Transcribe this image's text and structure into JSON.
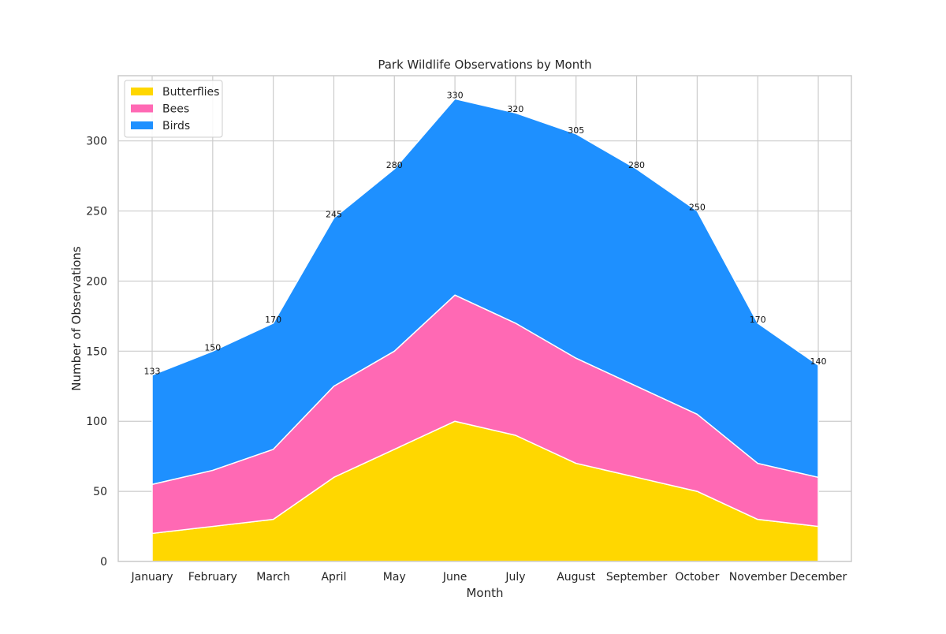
{
  "chart_data": {
    "type": "area",
    "stacked": true,
    "title": "Park Wildlife Observations by Month",
    "xlabel": "Month",
    "ylabel": "Number of Observations",
    "categories": [
      "January",
      "February",
      "March",
      "April",
      "May",
      "June",
      "July",
      "August",
      "September",
      "October",
      "November",
      "December"
    ],
    "series": [
      {
        "name": "Butterflies",
        "color": "#FFD700",
        "values": [
          20,
          25,
          30,
          60,
          80,
          100,
          90,
          70,
          60,
          50,
          30,
          25
        ]
      },
      {
        "name": "Bees",
        "color": "#FF69B4",
        "values": [
          35,
          40,
          50,
          65,
          70,
          90,
          80,
          75,
          65,
          55,
          40,
          35
        ]
      },
      {
        "name": "Birds",
        "color": "#1E90FF",
        "values": [
          78,
          85,
          90,
          120,
          130,
          140,
          150,
          160,
          155,
          145,
          100,
          80
        ]
      }
    ],
    "totals_labels": [
      "133",
      "150",
      "170",
      "245",
      "280",
      "330",
      "320",
      "305",
      "280",
      "250",
      "170",
      "140"
    ],
    "ylim": [
      0,
      346.5
    ],
    "yticks": [
      0,
      50,
      100,
      150,
      200,
      250,
      300
    ],
    "grid": true,
    "legend_position": "top-left"
  }
}
